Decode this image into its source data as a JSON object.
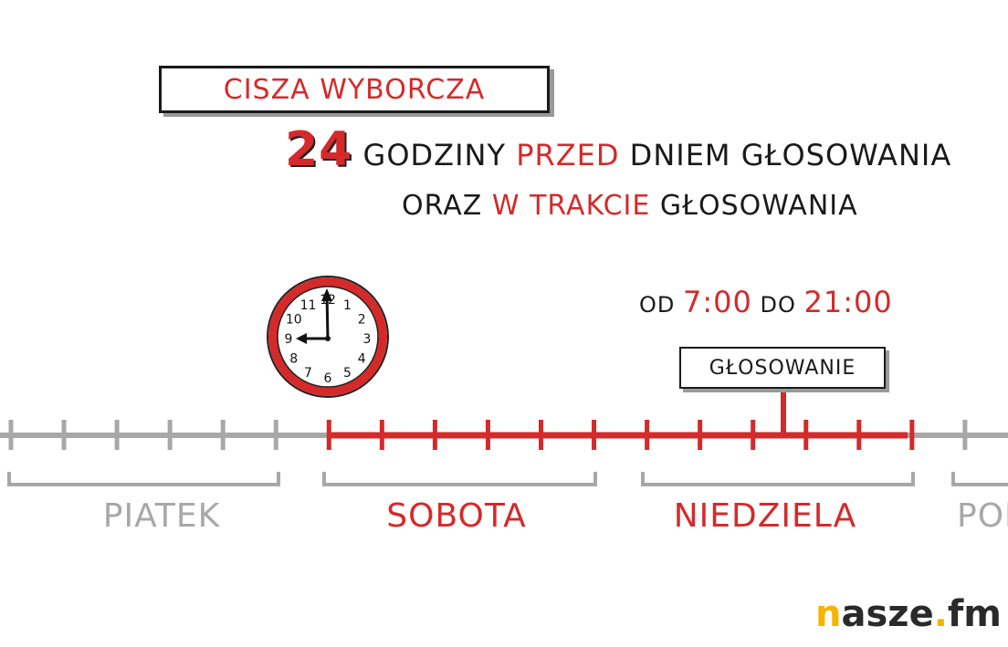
{
  "title": "CISZA WYBORCZA",
  "headline": {
    "number": "24",
    "part1": "GODZINY",
    "part2": "PRZED",
    "part3": "DNIEM GŁOSOWANIA"
  },
  "subline": {
    "part1": "ORAZ",
    "part2": "W",
    "part3": "TRAKCIE",
    "part4": "GŁOSOWANIA"
  },
  "hours": {
    "from_label": "OD",
    "from": "7:00",
    "to_label": "DO",
    "to": "21:00"
  },
  "vote_sign": "GŁOSOWANIE",
  "clock": {
    "numbers": [
      "12",
      "1",
      "2",
      "3",
      "4",
      "5",
      "6",
      "7",
      "8",
      "9",
      "10",
      "11"
    ],
    "time": "9:00"
  },
  "days": [
    {
      "label": "PIATEK",
      "color": "#a8a8a8"
    },
    {
      "label": "SOBOTA",
      "color": "#d42a2a"
    },
    {
      "label": "NIEDZIELA",
      "color": "#d42a2a"
    },
    {
      "label": "PON",
      "color": "#a8a8a8"
    }
  ],
  "logo": {
    "first": "n",
    "mid": "asze",
    "dot": ".",
    "end": "fm"
  },
  "colors": {
    "accent": "#d42a2a",
    "inactive": "#a8a8a8",
    "logo_yellow": "#f4b400"
  }
}
